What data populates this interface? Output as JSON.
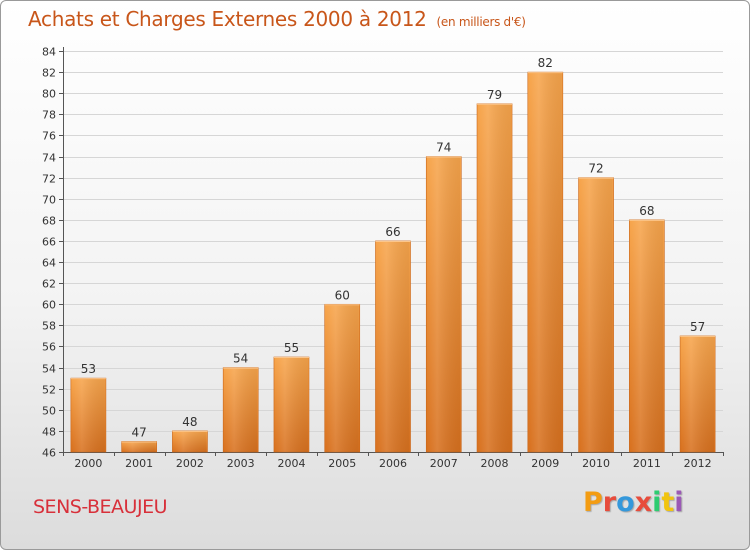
{
  "header": {
    "title": "Achats et Charges Externes 2000 à 2012",
    "unit": "(en milliers d'€)"
  },
  "footer": {
    "commune": "SENS-BEAUJEU",
    "logo_text": "Proxiti",
    "logo_colors": [
      "#f39c12",
      "#e74c3c",
      "#3498db",
      "#e74c3c",
      "#2ecc71",
      "#f1c40f",
      "#9b59b6"
    ]
  },
  "chart_data": {
    "type": "bar",
    "title": "Achats et Charges Externes 2000 à 2012",
    "xlabel": "",
    "ylabel": "",
    "categories": [
      "2000",
      "2001",
      "2002",
      "2003",
      "2004",
      "2005",
      "2006",
      "2007",
      "2008",
      "2009",
      "2010",
      "2011",
      "2012"
    ],
    "values": [
      53,
      47,
      48,
      54,
      55,
      60,
      66,
      74,
      79,
      82,
      72,
      68,
      57
    ],
    "ylim": [
      46,
      84
    ],
    "ytick_step": 2,
    "grid": true,
    "bar_color": "#f0903a",
    "bar_color_dark": "#d8711f"
  }
}
